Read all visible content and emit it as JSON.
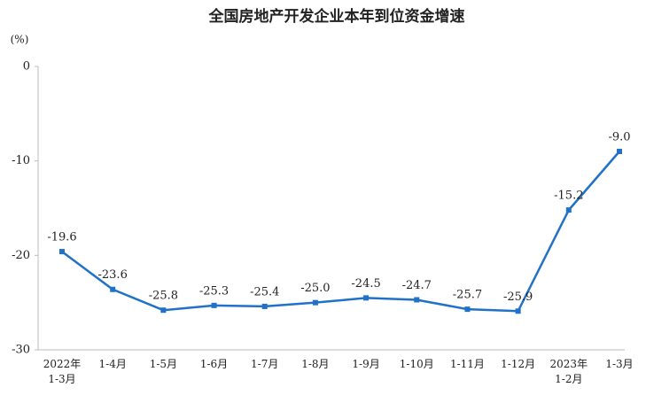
{
  "chart_data": {
    "type": "line",
    "title": "全国房地产开发企业本年到位资金增速",
    "y_unit": "(%)",
    "categories": [
      "2022年\n1-3月",
      "1-4月",
      "1-5月",
      "1-6月",
      "1-7月",
      "1-8月",
      "1-9月",
      "1-10月",
      "1-11月",
      "1-12月",
      "2023年\n1-2月",
      "1-3月"
    ],
    "series": [
      {
        "color": "#1f72c8",
        "values": [
          -19.6,
          -23.6,
          -25.8,
          -25.3,
          -25.4,
          -25.0,
          -24.5,
          -24.7,
          -25.7,
          -25.9,
          -15.2,
          -9.0
        ],
        "value_labels": [
          "-19.6",
          "-23.6",
          "-25.8",
          "-25.3",
          "-25.4",
          "-25.0",
          "-24.5",
          "-24.7",
          "-25.7",
          "-25.9",
          "-15.2",
          "-9.0"
        ]
      }
    ],
    "ylim": [
      -30,
      0
    ],
    "yticks": [
      0,
      -10,
      -20,
      -30
    ],
    "grid": false
  }
}
